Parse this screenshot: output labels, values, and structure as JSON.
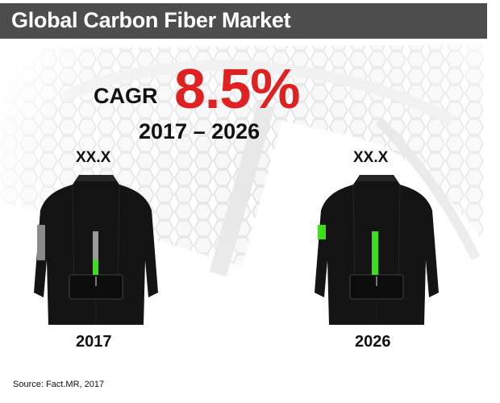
{
  "title": "Global Carbon Fiber Market",
  "cagr": {
    "label": "CAGR",
    "value": "8.5%",
    "period": "2017 – 2026"
  },
  "chart_data": {
    "type": "bar",
    "categories": [
      "2017",
      "2026"
    ],
    "value_labels": [
      "XX.X",
      "XX.X"
    ],
    "values": [
      0.35,
      1.0
    ],
    "fill_color": "#39e01b",
    "track_color": "#9a9a9a"
  },
  "source": "Source: Fact.MR, 2017"
}
